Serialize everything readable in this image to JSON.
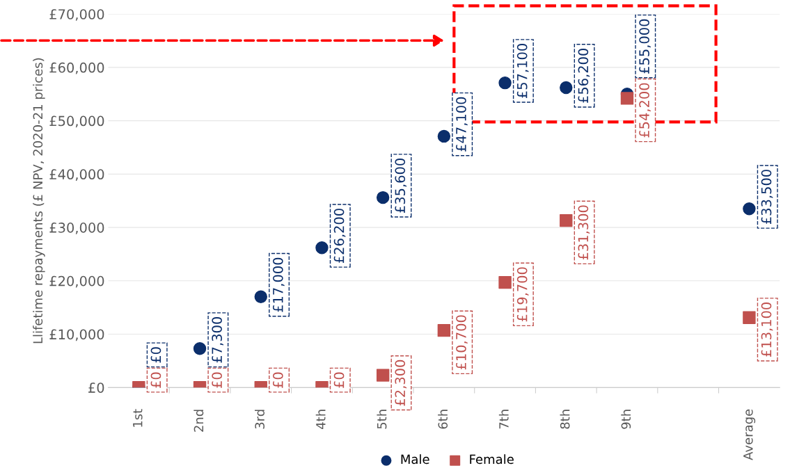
{
  "chart_data": {
    "type": "scatter",
    "ylabel": "Llifetime repayments (£ NPV, 2020-21 prices)",
    "categories": [
      "1st",
      "2nd",
      "3rd",
      "4th",
      "5th",
      "6th",
      "7th",
      "8th",
      "9th",
      null,
      "Average"
    ],
    "series": [
      {
        "name": "Male",
        "color": "#0b2e6b",
        "marker": "circle",
        "values": [
          0,
          7300,
          17000,
          26200,
          35600,
          47100,
          57100,
          56200,
          55000,
          null,
          33500
        ],
        "value_labels": [
          "£0",
          "£7,300",
          "£17,000",
          "£26,200",
          "£35,600",
          "£47,100",
          "£57,100",
          "£56,200",
          "£55,000",
          null,
          "£33,500"
        ]
      },
      {
        "name": "Female",
        "color": "#c0504d",
        "marker": "square",
        "values": [
          0,
          0,
          0,
          0,
          2300,
          10700,
          19700,
          31300,
          54200,
          null,
          13100
        ],
        "value_labels": [
          "£0",
          "£0",
          "£0",
          "£0",
          "£2,300",
          "£10,700",
          "£19,700",
          "£31,300",
          "£54,200",
          null,
          "£13,100"
        ]
      }
    ],
    "ylim": [
      0,
      70000
    ],
    "yticks": [
      {
        "value": 0,
        "label": "£0"
      },
      {
        "value": 10000,
        "label": "£10,000"
      },
      {
        "value": 20000,
        "label": "£20,000"
      },
      {
        "value": 30000,
        "label": "£30,000"
      },
      {
        "value": 40000,
        "label": "£40,000"
      },
      {
        "value": 50000,
        "label": "£50,000"
      },
      {
        "value": 60000,
        "label": "£60,000"
      },
      {
        "value": 70000,
        "label": "£70,000"
      }
    ],
    "grid": "y",
    "legend": "bottom"
  }
}
